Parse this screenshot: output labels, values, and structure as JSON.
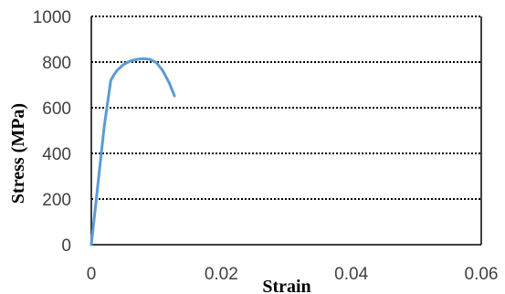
{
  "chart_data": {
    "type": "line",
    "title": "",
    "xlabel": "Strain",
    "ylabel": "Stress (MPa)",
    "xlim": [
      0,
      0.06
    ],
    "ylim": [
      0,
      1000
    ],
    "x_ticks": [
      "0",
      "0.02",
      "0.04",
      "0.06"
    ],
    "x_tick_values": [
      0,
      0.02,
      0.04,
      0.06
    ],
    "y_ticks": [
      "0",
      "200",
      "400",
      "600",
      "800",
      "1000"
    ],
    "y_tick_values": [
      0,
      200,
      400,
      600,
      800,
      1000
    ],
    "grid": "horizontal dotted",
    "legend": "none",
    "series": [
      {
        "color": "#5b9bd5",
        "x": [
          0,
          0.001,
          0.002,
          0.003,
          0.0035,
          0.004,
          0.005,
          0.006,
          0.007,
          0.008,
          0.009,
          0.01,
          0.011,
          0.012,
          0.0128
        ],
        "y": [
          0,
          260,
          520,
          720,
          745,
          765,
          790,
          805,
          812,
          815,
          812,
          798,
          762,
          708,
          652
        ]
      }
    ]
  }
}
